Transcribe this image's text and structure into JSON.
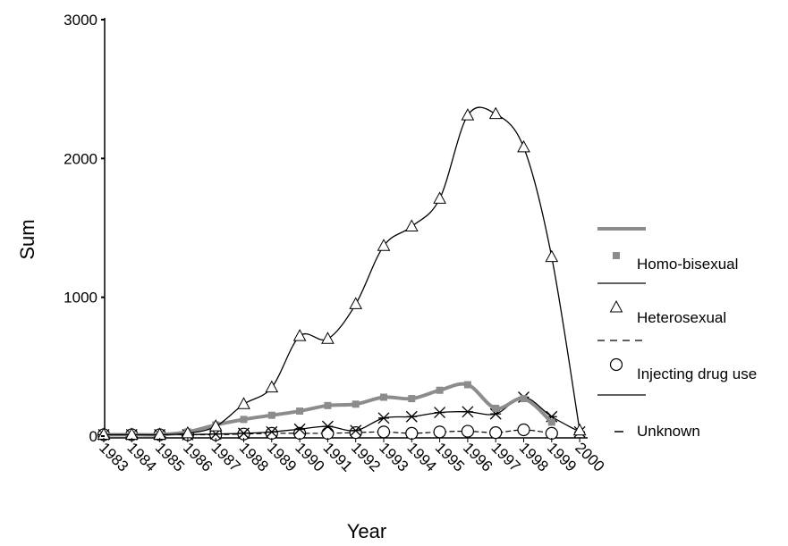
{
  "chart_data": {
    "type": "line",
    "xlabel": "Year",
    "ylabel": "Sum",
    "ylim": [
      0,
      3000
    ],
    "yticks": [
      0,
      1000,
      2000,
      3000
    ],
    "x": [
      "1983",
      "1984",
      "1985",
      "1986",
      "1987",
      "1988",
      "1989",
      "1990",
      "1991",
      "1992",
      "1993",
      "1994",
      "1995",
      "1996",
      "1997",
      "1998",
      "1999",
      "2000"
    ],
    "grid": false,
    "legend_position": "right",
    "series": [
      {
        "name": "Homo-bisexual",
        "color": "#8c8c8c",
        "marker": "square",
        "line_style": "thick-solid",
        "values": [
          10,
          10,
          10,
          30,
          80,
          120,
          150,
          180,
          220,
          230,
          280,
          270,
          330,
          370,
          200,
          270,
          100,
          null
        ]
      },
      {
        "name": "Heterosexual",
        "color": "#000000",
        "marker": "triangle",
        "line_style": "solid",
        "values": [
          10,
          10,
          10,
          20,
          70,
          230,
          350,
          720,
          700,
          950,
          1370,
          1510,
          1710,
          2310,
          2320,
          2080,
          1290,
          40
        ]
      },
      {
        "name": "Injecting drug use",
        "color": "#000000",
        "marker": "circle",
        "line_style": "dashed",
        "values": [
          10,
          10,
          10,
          10,
          10,
          15,
          20,
          20,
          20,
          25,
          30,
          20,
          30,
          35,
          25,
          45,
          20,
          null
        ]
      },
      {
        "name": "Unknown",
        "color": "#000000",
        "marker": "asterisk",
        "line_style": "solid",
        "values": [
          10,
          10,
          10,
          10,
          15,
          20,
          30,
          50,
          70,
          40,
          130,
          140,
          170,
          175,
          160,
          280,
          140,
          30
        ]
      }
    ]
  }
}
